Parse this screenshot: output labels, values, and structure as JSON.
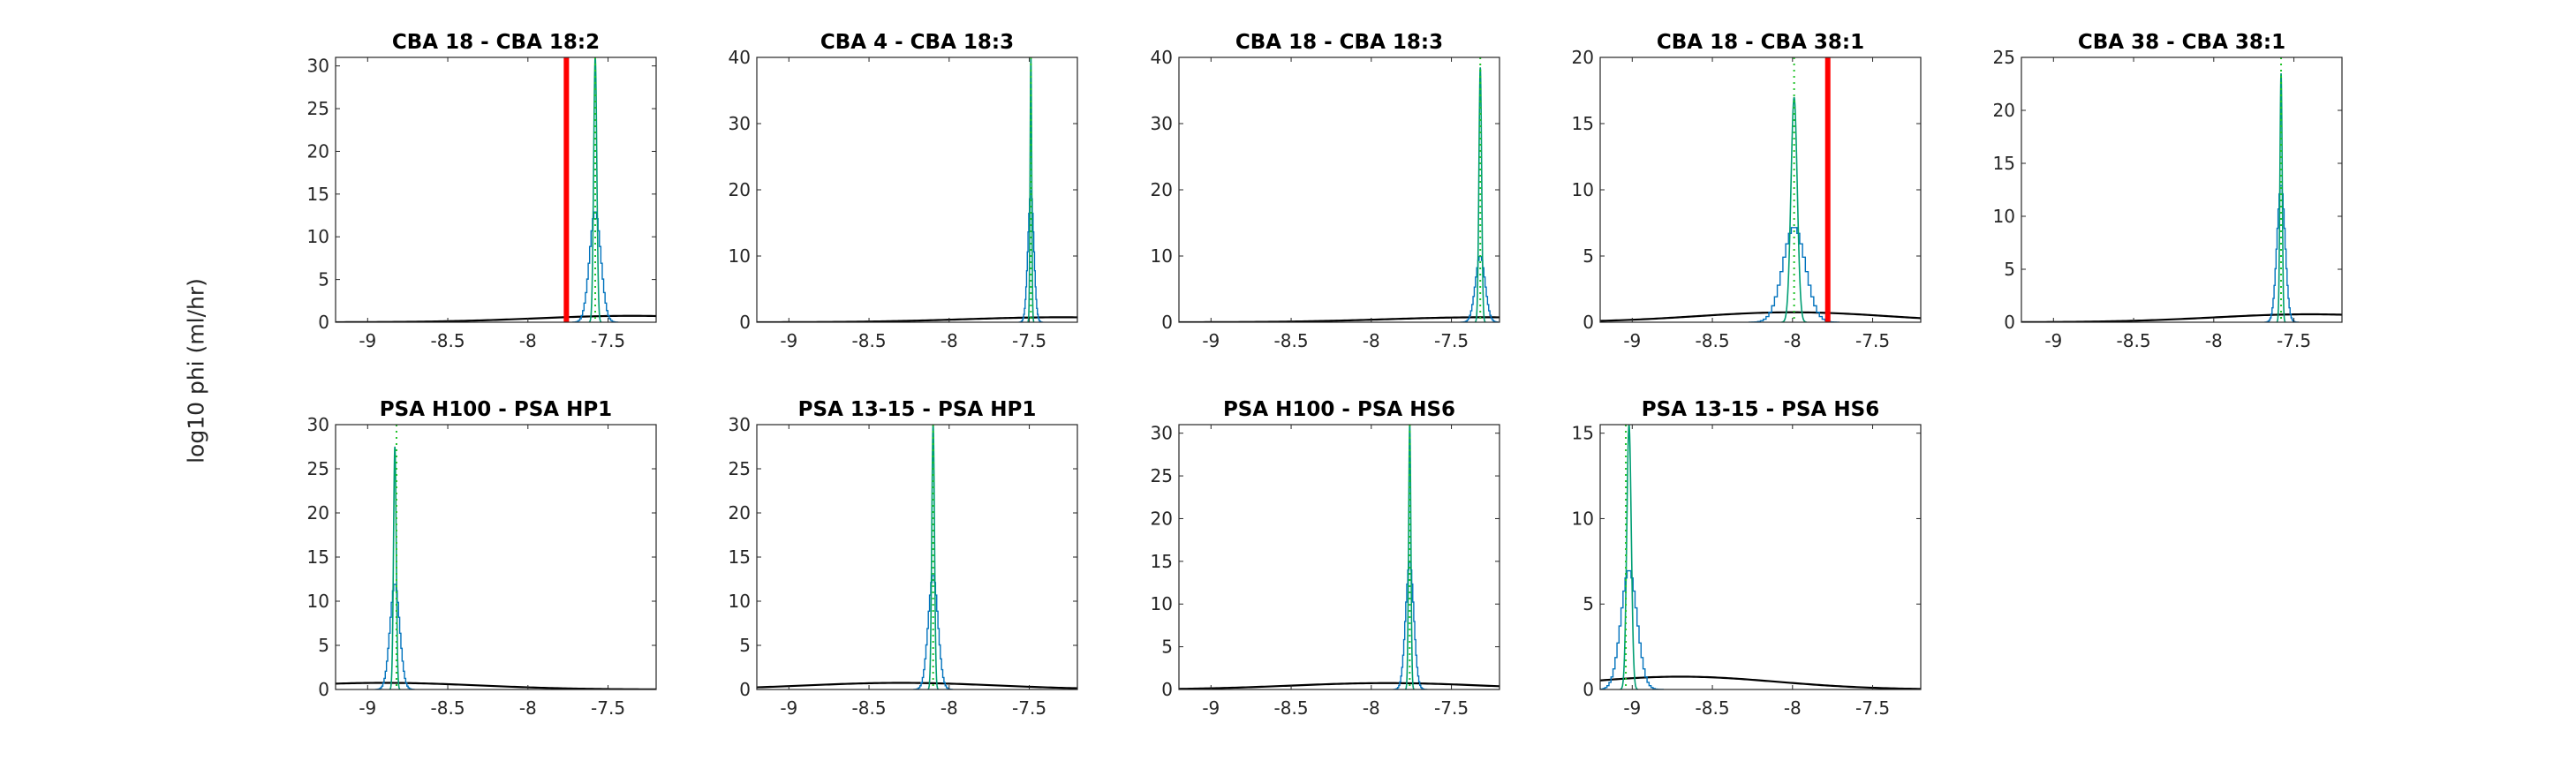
{
  "figure": {
    "ylabel": "log10 phi (ml/hr)"
  },
  "colors": {
    "histogram": "#0072BD",
    "posterior_line": "#009E73",
    "median_line": "#22C32A",
    "prior_curve": "#000000",
    "marker": "#FF0000",
    "axes": "#262626"
  },
  "chart_data": [
    {
      "type": "histogram",
      "title": "CBA 18 - CBA 18:2",
      "xlim": [
        -9.2,
        -7.2
      ],
      "ylim": [
        0,
        31
      ],
      "xticks": [
        -9,
        -8.5,
        -8,
        -7.5
      ],
      "xtick_labels": [
        "-9",
        "-8.5",
        "-8",
        "-7.5"
      ],
      "yticks": [
        0,
        5,
        10,
        15,
        20,
        25,
        30
      ],
      "ytick_labels": [
        "0",
        "5",
        "10",
        "15",
        "20",
        "25",
        "30"
      ],
      "peak_x": -7.58,
      "peak_y": 31,
      "spread": 0.035,
      "hist_peak": 13,
      "median_x": -7.58,
      "marker_x": -7.76,
      "prior_center": -7.35,
      "prior_height": 0.75,
      "prior_sd": 0.6
    },
    {
      "type": "histogram",
      "title": "CBA 4 - CBA 18:3",
      "xlim": [
        -9.2,
        -7.2
      ],
      "ylim": [
        0,
        40
      ],
      "xticks": [
        -9,
        -8.5,
        -8,
        -7.5
      ],
      "xtick_labels": [
        "-9",
        "-8.5",
        "-8",
        "-7.5"
      ],
      "yticks": [
        0,
        10,
        20,
        30,
        40
      ],
      "ytick_labels": [
        "0",
        "10",
        "20",
        "30",
        "40"
      ],
      "peak_x": -7.49,
      "peak_y": 40,
      "spread": 0.018,
      "hist_peak": 20,
      "median_x": -7.49,
      "marker_x": null,
      "prior_center": -7.3,
      "prior_height": 0.75,
      "prior_sd": 0.6
    },
    {
      "type": "histogram",
      "title": "CBA 18 - CBA 18:3",
      "xlim": [
        -9.2,
        -7.2
      ],
      "ylim": [
        0,
        40
      ],
      "xticks": [
        -9,
        -8.5,
        -8,
        -7.5
      ],
      "xtick_labels": [
        "-9",
        "-8.5",
        "-8",
        "-7.5"
      ],
      "yticks": [
        0,
        10,
        20,
        30,
        40
      ],
      "ytick_labels": [
        "0",
        "10",
        "20",
        "30",
        "40"
      ],
      "peak_x": -7.32,
      "peak_y": 38.5,
      "spread": 0.03,
      "hist_peak": 10,
      "median_x": -7.32,
      "marker_x": null,
      "prior_center": -7.3,
      "prior_height": 0.75,
      "prior_sd": 0.6
    },
    {
      "type": "histogram",
      "title": "CBA 18 - CBA 38:1",
      "xlim": [
        -9.2,
        -7.2
      ],
      "ylim": [
        0,
        20
      ],
      "xticks": [
        -9,
        -8.5,
        -8,
        -7.5
      ],
      "xtick_labels": [
        "-9",
        "-8.5",
        "-8",
        "-7.5"
      ],
      "yticks": [
        0,
        5,
        10,
        15,
        20
      ],
      "ytick_labels": [
        "0",
        "5",
        "10",
        "15",
        "20"
      ],
      "peak_x": -7.99,
      "peak_y": 17,
      "spread": 0.07,
      "hist_peak": 7.2,
      "median_x": -7.99,
      "marker_x": -7.78,
      "prior_center": -8.0,
      "prior_height": 0.75,
      "prior_sd": 0.6
    },
    {
      "type": "histogram",
      "title": "CBA 38 - CBA 38:1",
      "xlim": [
        -9.2,
        -7.2
      ],
      "ylim": [
        0,
        25
      ],
      "xticks": [
        -9,
        -8.5,
        -8,
        -7.5
      ],
      "xtick_labels": [
        "-9",
        "-8.5",
        "-8",
        "-7.5"
      ],
      "yticks": [
        0,
        5,
        10,
        15,
        20,
        25
      ],
      "ytick_labels": [
        "0",
        "5",
        "10",
        "15",
        "20",
        "25"
      ],
      "peak_x": -7.58,
      "peak_y": 23.5,
      "spread": 0.025,
      "hist_peak": 13,
      "median_x": -7.58,
      "marker_x": null,
      "prior_center": -7.4,
      "prior_height": 0.75,
      "prior_sd": 0.6
    },
    {
      "type": "histogram",
      "title": "PSA H100 - PSA HP1",
      "xlim": [
        -9.2,
        -7.2
      ],
      "ylim": [
        0,
        30
      ],
      "xticks": [
        -9,
        -8.5,
        -8,
        -7.5
      ],
      "xtick_labels": [
        "-9",
        "-8.5",
        "-8",
        "-7.5"
      ],
      "yticks": [
        0,
        5,
        10,
        15,
        20,
        25,
        30
      ],
      "ytick_labels": [
        "0",
        "5",
        "10",
        "15",
        "20",
        "25",
        "30"
      ],
      "peak_x": -8.83,
      "peak_y": 27.5,
      "spread": 0.03,
      "hist_peak": 12,
      "median_x": -8.82,
      "marker_x": null,
      "prior_center": -8.9,
      "prior_height": 0.75,
      "prior_sd": 0.6
    },
    {
      "type": "histogram",
      "title": "PSA 13-15 - PSA HP1",
      "xlim": [
        -9.2,
        -7.2
      ],
      "ylim": [
        0,
        30
      ],
      "xticks": [
        -9,
        -8.5,
        -8,
        -7.5
      ],
      "xtick_labels": [
        "-9",
        "-8.5",
        "-8",
        "-7.5"
      ],
      "yticks": [
        0,
        5,
        10,
        15,
        20,
        25,
        30
      ],
      "ytick_labels": [
        "0",
        "5",
        "10",
        "15",
        "20",
        "25",
        "30"
      ],
      "peak_x": -8.1,
      "peak_y": 30,
      "spread": 0.03,
      "hist_peak": 13,
      "median_x": -8.1,
      "marker_x": null,
      "prior_center": -8.3,
      "prior_height": 0.75,
      "prior_sd": 0.6
    },
    {
      "type": "histogram",
      "title": "PSA H100 - PSA HS6",
      "xlim": [
        -9.2,
        -7.2
      ],
      "ylim": [
        0,
        31
      ],
      "xticks": [
        -9,
        -8.5,
        -8,
        -7.5
      ],
      "xtick_labels": [
        "-9",
        "-8.5",
        "-8",
        "-7.5"
      ],
      "yticks": [
        0,
        5,
        10,
        15,
        20,
        25,
        30
      ],
      "ytick_labels": [
        "0",
        "5",
        "10",
        "15",
        "20",
        "25",
        "30"
      ],
      "peak_x": -7.76,
      "peak_y": 31,
      "spread": 0.025,
      "hist_peak": 15,
      "median_x": -7.76,
      "marker_x": null,
      "prior_center": -7.9,
      "prior_height": 0.75,
      "prior_sd": 0.6
    },
    {
      "type": "histogram",
      "title": "PSA 13-15 - PSA HS6",
      "xlim": [
        -9.2,
        -7.2
      ],
      "ylim": [
        0,
        15.5
      ],
      "xticks": [
        -9,
        -8.5,
        -8,
        -7.5
      ],
      "xtick_labels": [
        "-9",
        "-8.5",
        "-8",
        "-7.5"
      ],
      "yticks": [
        0,
        5,
        10,
        15
      ],
      "ytick_labels": [
        "0",
        "5",
        "10",
        "15"
      ],
      "peak_x": -9.02,
      "peak_y": 15.5,
      "spread": 0.05,
      "hist_peak": 7,
      "median_x": -9.04,
      "marker_x": null,
      "prior_center": -8.7,
      "prior_height": 0.75,
      "prior_sd": 0.6
    }
  ]
}
